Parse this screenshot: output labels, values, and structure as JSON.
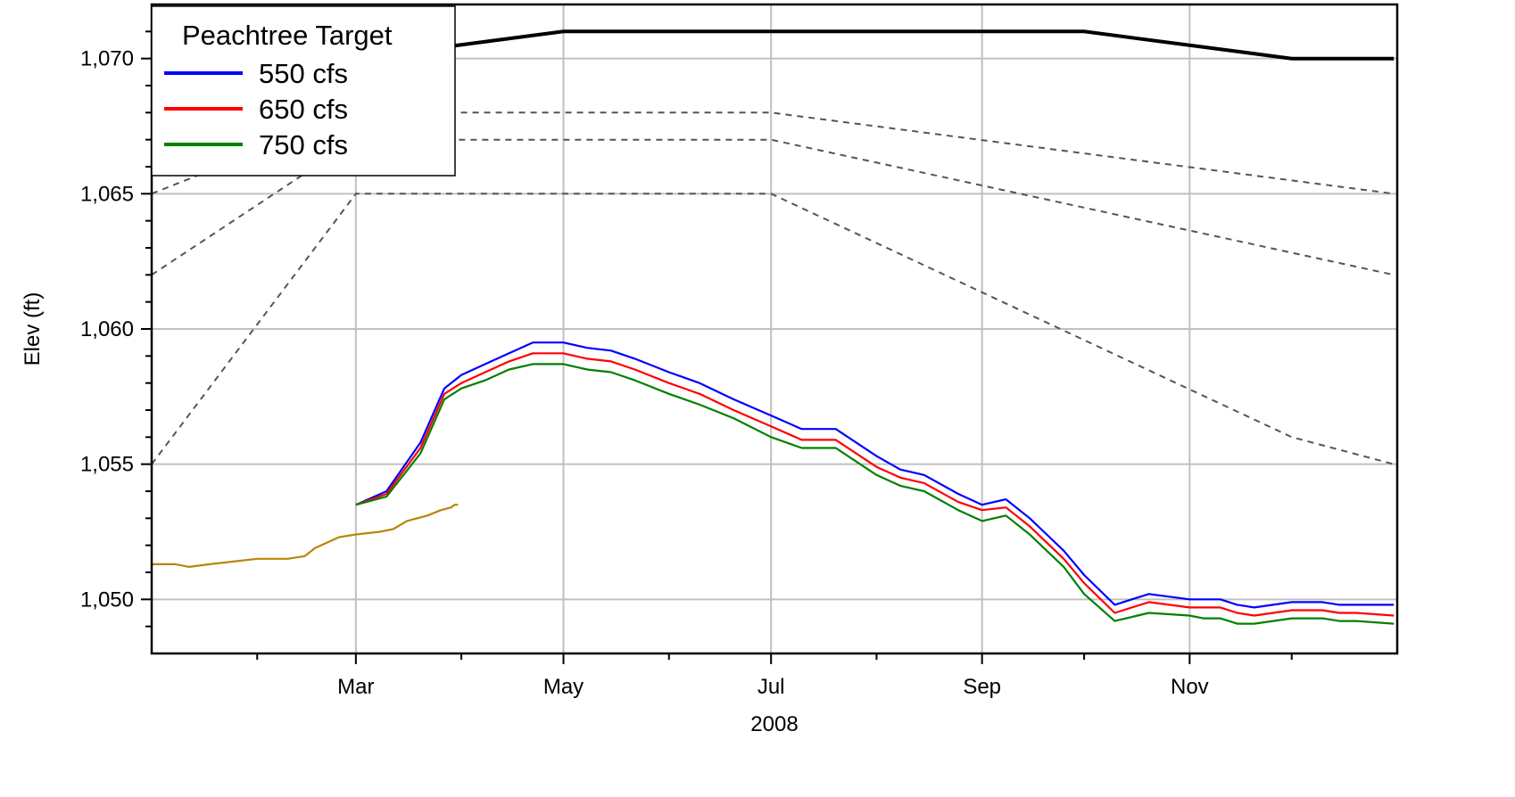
{
  "chart_data": {
    "type": "line",
    "title": "",
    "xlabel": "2008",
    "ylabel": "Elev (ft)",
    "xlim": [
      "2008-01-01",
      "2009-01-01"
    ],
    "ylim": [
      1048,
      1072
    ],
    "x_ticks": [
      "2008-03-01",
      "2008-05-01",
      "2008-07-01",
      "2008-09-01",
      "2008-11-01"
    ],
    "x_tick_labels": [
      "Mar",
      "May",
      "Jul",
      "Sep",
      "Nov"
    ],
    "x_minor_ticks": [
      "2008-02-01",
      "2008-04-01",
      "2008-06-01",
      "2008-08-01",
      "2008-10-01",
      "2008-12-01"
    ],
    "y_ticks": [
      1050,
      1055,
      1060,
      1065,
      1070
    ],
    "y_tick_labels": [
      "1,050",
      "1,055",
      "1,060",
      "1,065",
      "1,070"
    ],
    "y_minor_ticks": [
      1049,
      1051,
      1052,
      1053,
      1054,
      1056,
      1057,
      1058,
      1059,
      1061,
      1062,
      1063,
      1064,
      1066,
      1067,
      1068,
      1069,
      1071
    ],
    "grid": true,
    "legend": {
      "title": "Peachtree Target",
      "position": "top-left",
      "entries": [
        {
          "label": "550 cfs",
          "color": "#0000ff"
        },
        {
          "label": "650 cfs",
          "color": "#ff0000"
        },
        {
          "label": "750 cfs",
          "color": "#008000"
        }
      ]
    },
    "series": [
      {
        "name": "550 cfs",
        "color": "#0000ff",
        "x": [
          "2008-03-01",
          "2008-03-10",
          "2008-03-20",
          "2008-03-27",
          "2008-04-01",
          "2008-04-08",
          "2008-04-15",
          "2008-04-22",
          "2008-05-01",
          "2008-05-08",
          "2008-05-15",
          "2008-05-22",
          "2008-06-01",
          "2008-06-10",
          "2008-06-20",
          "2008-07-01",
          "2008-07-10",
          "2008-07-20",
          "2008-08-01",
          "2008-08-08",
          "2008-08-15",
          "2008-08-25",
          "2008-09-01",
          "2008-09-08",
          "2008-09-15",
          "2008-09-20",
          "2008-09-25",
          "2008-10-01",
          "2008-10-10",
          "2008-10-20",
          "2008-11-01",
          "2008-11-05",
          "2008-11-10",
          "2008-11-15",
          "2008-11-20",
          "2008-12-01",
          "2008-12-10",
          "2008-12-15",
          "2008-12-20",
          "2008-12-31"
        ],
        "y": [
          1053.5,
          1054.0,
          1055.8,
          1057.8,
          1058.3,
          1058.7,
          1059.1,
          1059.5,
          1059.5,
          1059.3,
          1059.2,
          1058.9,
          1058.4,
          1058.0,
          1057.4,
          1056.8,
          1056.3,
          1056.3,
          1055.3,
          1054.8,
          1054.6,
          1053.9,
          1053.5,
          1053.7,
          1053.0,
          1052.4,
          1051.8,
          1050.9,
          1049.8,
          1050.2,
          1050.0,
          1050.0,
          1050.0,
          1049.8,
          1049.7,
          1049.9,
          1049.9,
          1049.8,
          1049.8,
          1049.8
        ]
      },
      {
        "name": "650 cfs",
        "color": "#ff0000",
        "x": [
          "2008-03-01",
          "2008-03-10",
          "2008-03-20",
          "2008-03-27",
          "2008-04-01",
          "2008-04-08",
          "2008-04-15",
          "2008-04-22",
          "2008-05-01",
          "2008-05-08",
          "2008-05-15",
          "2008-05-22",
          "2008-06-01",
          "2008-06-10",
          "2008-06-20",
          "2008-07-01",
          "2008-07-10",
          "2008-07-20",
          "2008-08-01",
          "2008-08-08",
          "2008-08-15",
          "2008-08-25",
          "2008-09-01",
          "2008-09-08",
          "2008-09-15",
          "2008-09-20",
          "2008-09-25",
          "2008-10-01",
          "2008-10-10",
          "2008-10-20",
          "2008-11-01",
          "2008-11-05",
          "2008-11-10",
          "2008-11-15",
          "2008-11-20",
          "2008-12-01",
          "2008-12-10",
          "2008-12-15",
          "2008-12-20",
          "2008-12-31"
        ],
        "y": [
          1053.5,
          1053.9,
          1055.6,
          1057.6,
          1058.0,
          1058.4,
          1058.8,
          1059.1,
          1059.1,
          1058.9,
          1058.8,
          1058.5,
          1058.0,
          1057.6,
          1057.0,
          1056.4,
          1055.9,
          1055.9,
          1054.9,
          1054.5,
          1054.3,
          1053.6,
          1053.3,
          1053.4,
          1052.7,
          1052.1,
          1051.5,
          1050.6,
          1049.5,
          1049.9,
          1049.7,
          1049.7,
          1049.7,
          1049.5,
          1049.4,
          1049.6,
          1049.6,
          1049.5,
          1049.5,
          1049.4
        ]
      },
      {
        "name": "750 cfs",
        "color": "#008000",
        "x": [
          "2008-03-01",
          "2008-03-10",
          "2008-03-20",
          "2008-03-27",
          "2008-04-01",
          "2008-04-08",
          "2008-04-15",
          "2008-04-22",
          "2008-05-01",
          "2008-05-08",
          "2008-05-15",
          "2008-05-22",
          "2008-06-01",
          "2008-06-10",
          "2008-06-20",
          "2008-07-01",
          "2008-07-10",
          "2008-07-20",
          "2008-08-01",
          "2008-08-08",
          "2008-08-15",
          "2008-08-25",
          "2008-09-01",
          "2008-09-08",
          "2008-09-15",
          "2008-09-20",
          "2008-09-25",
          "2008-10-01",
          "2008-10-10",
          "2008-10-20",
          "2008-11-01",
          "2008-11-05",
          "2008-11-10",
          "2008-11-15",
          "2008-11-20",
          "2008-12-01",
          "2008-12-10",
          "2008-12-15",
          "2008-12-20",
          "2008-12-31"
        ],
        "y": [
          1053.5,
          1053.8,
          1055.4,
          1057.4,
          1057.8,
          1058.1,
          1058.5,
          1058.7,
          1058.7,
          1058.5,
          1058.4,
          1058.1,
          1057.6,
          1057.2,
          1056.7,
          1056.0,
          1055.6,
          1055.6,
          1054.6,
          1054.2,
          1054.0,
          1053.3,
          1052.9,
          1053.1,
          1052.4,
          1051.8,
          1051.2,
          1050.2,
          1049.2,
          1049.5,
          1049.4,
          1049.3,
          1049.3,
          1049.1,
          1049.1,
          1049.3,
          1049.3,
          1049.2,
          1049.2,
          1049.1
        ]
      },
      {
        "name": "",
        "color": "#b8860b",
        "x": [
          "2008-01-01",
          "2008-01-08",
          "2008-01-12",
          "2008-01-18",
          "2008-01-25",
          "2008-02-01",
          "2008-02-10",
          "2008-02-15",
          "2008-02-18",
          "2008-02-25",
          "2008-03-01",
          "2008-03-08",
          "2008-03-12",
          "2008-03-16",
          "2008-03-22",
          "2008-03-26",
          "2008-03-29",
          "2008-03-30",
          "2008-03-31"
        ],
        "y": [
          1051.3,
          1051.3,
          1051.2,
          1051.3,
          1051.4,
          1051.5,
          1051.5,
          1051.6,
          1051.9,
          1052.3,
          1052.4,
          1052.5,
          1052.6,
          1052.9,
          1053.1,
          1053.3,
          1053.4,
          1053.5,
          1053.5
        ]
      }
    ],
    "reference_lines": [
      {
        "color": "#000000",
        "style": "solid",
        "x": [
          "2008-01-01",
          "2008-03-01",
          "2008-05-01",
          "2008-10-01",
          "2008-12-01",
          "2008-12-31"
        ],
        "y": [
          1069,
          1070,
          1071,
          1071,
          1070,
          1070
        ]
      },
      {
        "color": "#555555",
        "style": "dashed",
        "x": [
          "2008-01-01",
          "2008-03-01",
          "2008-07-01",
          "2008-12-31"
        ],
        "y": [
          1065,
          1068,
          1068,
          1065
        ]
      },
      {
        "color": "#555555",
        "style": "dashed",
        "x": [
          "2008-01-01",
          "2008-03-01",
          "2008-07-01",
          "2008-12-31"
        ],
        "y": [
          1062,
          1067,
          1067,
          1062
        ]
      },
      {
        "color": "#555555",
        "style": "dashed",
        "x": [
          "2008-01-01",
          "2008-03-01",
          "2008-07-01",
          "2008-12-01",
          "2008-12-31"
        ],
        "y": [
          1055,
          1065,
          1065,
          1056,
          1055
        ]
      }
    ]
  }
}
